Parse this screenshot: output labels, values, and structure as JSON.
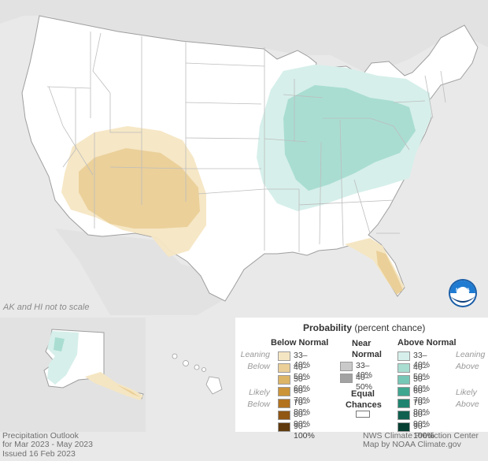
{
  "map": {
    "scale_note": "AK and HI not to scale",
    "colors": {
      "background": "#e9e9e9",
      "land": "#ffffff",
      "state_border": "#bdbdbd",
      "coast": "#9e9e9e"
    },
    "regions": [
      {
        "name": "southwest-below-normal-33-40",
        "category": "below",
        "level": "33–40%"
      },
      {
        "name": "southwest-below-normal-40-50",
        "category": "below",
        "level": "40–50%"
      },
      {
        "name": "florida-below-normal-40-50",
        "category": "below",
        "level": "40–50%"
      },
      {
        "name": "ohio-valley-above-normal-33-40",
        "category": "above",
        "level": "33–40%"
      },
      {
        "name": "ohio-valley-above-normal-40-50",
        "category": "above",
        "level": "40–50%"
      },
      {
        "name": "alaska-southwest-above-normal",
        "category": "above",
        "level": "33–40%"
      },
      {
        "name": "alaska-southeast-below-normal",
        "category": "below",
        "level": "33–40%"
      }
    ]
  },
  "legend": {
    "title_bold": "Probability",
    "title_rest": "(percent chance)",
    "below": {
      "header": "Below Normal",
      "leaning_label": [
        "Leaning",
        "Below"
      ],
      "likely_label": [
        "Likely",
        "Below"
      ],
      "items": [
        {
          "label": "33–40%",
          "color": "#f5e6c3"
        },
        {
          "label": "40–50%",
          "color": "#eacf98"
        },
        {
          "label": "50–60%",
          "color": "#ddb566"
        },
        {
          "label": "60–70%",
          "color": "#cc9438"
        },
        {
          "label": "70–80%",
          "color": "#b3721e"
        },
        {
          "label": "80–90%",
          "color": "#8f5614"
        },
        {
          "label": "90–100%",
          "color": "#5f3a0f"
        }
      ]
    },
    "near": {
      "header": [
        "Near",
        "Normal"
      ],
      "items": [
        {
          "label": "33–40%",
          "color": "#c9c9c9"
        },
        {
          "label": "40–50%",
          "color": "#a2a2a2"
        }
      ]
    },
    "equal": {
      "label": [
        "Equal",
        "Chances"
      ],
      "color": "#ffffff"
    },
    "above": {
      "header": "Above Normal",
      "leaning_label": [
        "Leaning",
        "Above"
      ],
      "likely_label": [
        "Likely",
        "Above"
      ],
      "items": [
        {
          "label": "33–40%",
          "color": "#d6efea"
        },
        {
          "label": "40–50%",
          "color": "#a9ddd2"
        },
        {
          "label": "50–60%",
          "color": "#77c7b7"
        },
        {
          "label": "60–70%",
          "color": "#3fa690"
        },
        {
          "label": "70–80%",
          "color": "#1f846f"
        },
        {
          "label": "80–90%",
          "color": "#10604f"
        },
        {
          "label": "90–100%",
          "color": "#063f32"
        }
      ]
    }
  },
  "footer": {
    "left": [
      "Precipitation Outlook",
      "for Mar 2023 - May 2023",
      "Issued 16 Feb 2023"
    ],
    "right": [
      "NWS Climate Prediction Center",
      "Map by NOAA Climate.gov"
    ]
  },
  "logo": {
    "text": "NOAA"
  }
}
